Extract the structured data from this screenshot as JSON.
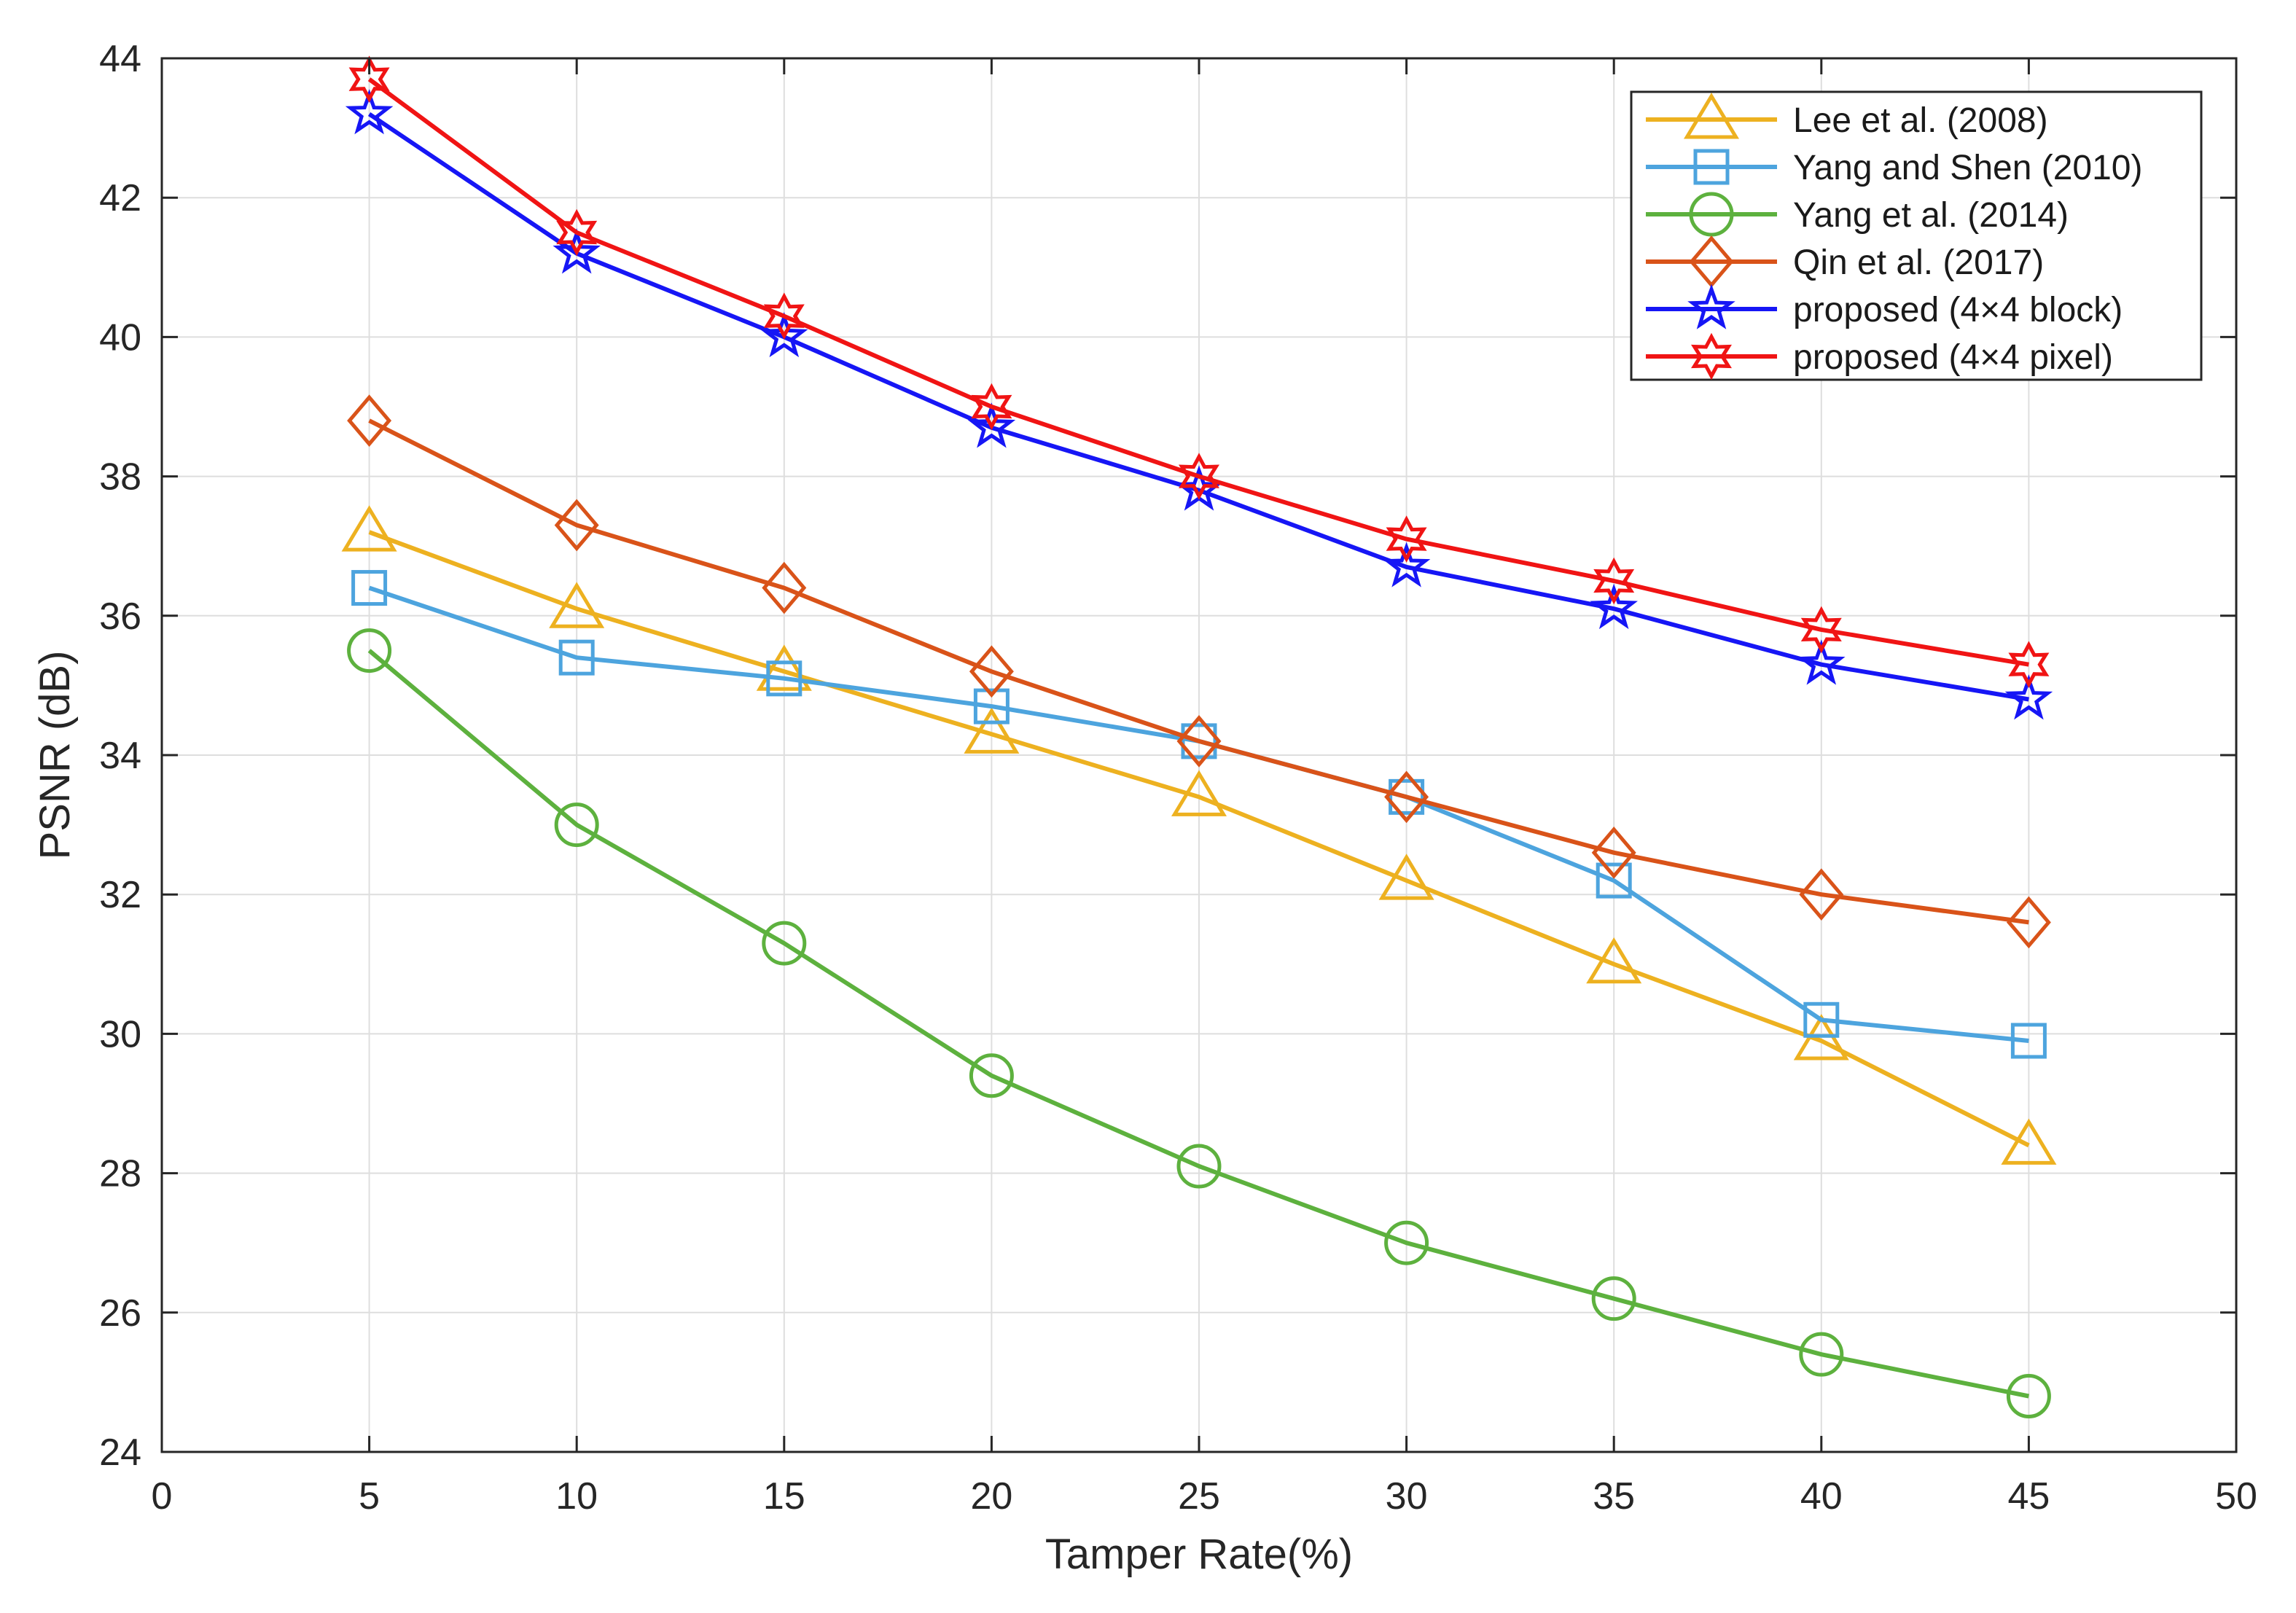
{
  "chart_data": {
    "type": "line",
    "xlabel": "Tamper Rate(%)",
    "ylabel": "PSNR (dB)",
    "xlim": [
      0,
      50
    ],
    "ylim": [
      24,
      44
    ],
    "xticks": [
      0,
      5,
      10,
      15,
      20,
      25,
      30,
      35,
      40,
      45,
      50
    ],
    "yticks": [
      24,
      26,
      28,
      30,
      32,
      34,
      36,
      38,
      40,
      42,
      44
    ],
    "grid": true,
    "legend_position": "top-right",
    "x": [
      5,
      10,
      15,
      20,
      25,
      30,
      35,
      40,
      45
    ],
    "series": [
      {
        "name": "Lee et al. (2008)",
        "color": "#EDB120",
        "marker": "triangle",
        "values": [
          37.2,
          36.1,
          35.2,
          34.3,
          33.4,
          32.2,
          31.0,
          29.9,
          28.4
        ]
      },
      {
        "name": "Yang and Shen (2010)",
        "color": "#4DA4DE",
        "marker": "square",
        "values": [
          36.4,
          35.4,
          35.1,
          34.7,
          34.2,
          33.4,
          32.2,
          30.2,
          29.9
        ]
      },
      {
        "name": "Yang et al. (2014)",
        "color": "#5DB13E",
        "marker": "circle",
        "values": [
          35.5,
          33.0,
          31.3,
          29.4,
          28.1,
          27.0,
          26.2,
          25.4,
          24.8
        ]
      },
      {
        "name": "Qin et al. (2017)",
        "color": "#D95319",
        "marker": "diamond",
        "values": [
          38.8,
          37.3,
          36.4,
          35.2,
          34.2,
          33.4,
          32.6,
          32.0,
          31.6
        ]
      },
      {
        "name": "proposed (4×4 block)",
        "color": "#1616F5",
        "marker": "pentagram",
        "values": [
          43.2,
          41.2,
          40.0,
          38.7,
          37.8,
          36.7,
          36.1,
          35.3,
          34.8
        ]
      },
      {
        "name": "proposed (4×4 pixel)",
        "color": "#F01414",
        "marker": "hexagram",
        "values": [
          43.7,
          41.5,
          40.3,
          39.0,
          38.0,
          37.1,
          36.5,
          35.8,
          35.3
        ]
      }
    ]
  }
}
